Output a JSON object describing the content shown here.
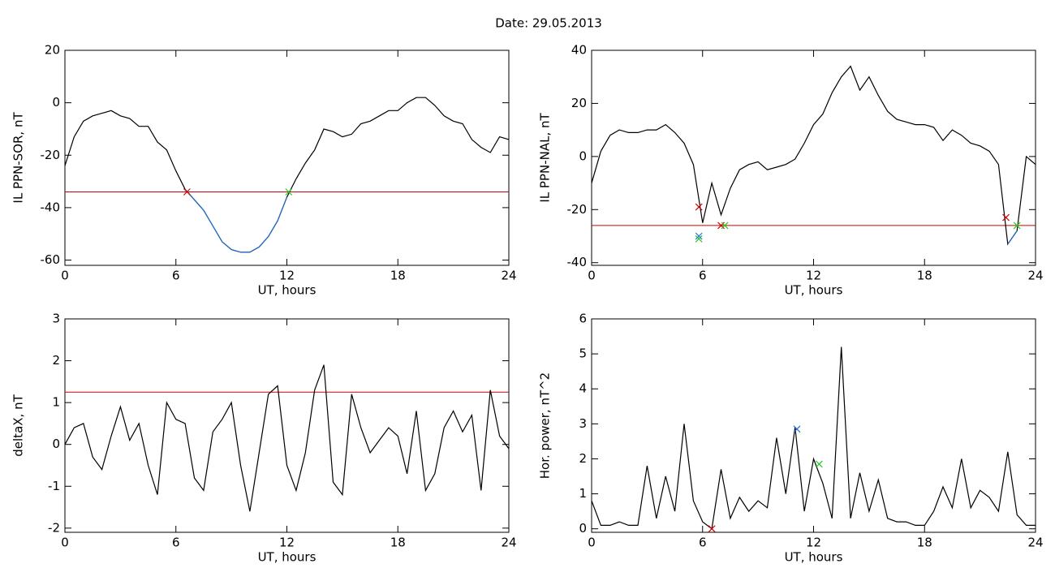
{
  "title": "Date:  29.05.2013",
  "chart_data": [
    {
      "type": "line",
      "ylabel": "IL PPN-SOR, nT",
      "xlabel": "UT, hours",
      "xlim": [
        0,
        24
      ],
      "xticks": [
        0,
        6,
        12,
        18,
        24
      ],
      "ylim": [
        -62,
        20
      ],
      "yticks": [
        -60,
        -40,
        -20,
        0,
        20
      ],
      "x": [
        0,
        0.5,
        1,
        1.5,
        2,
        2.5,
        3,
        3.5,
        4,
        4.5,
        5,
        5.5,
        6,
        6.5,
        7,
        7.5,
        8,
        8.5,
        9,
        9.5,
        10,
        10.5,
        11,
        11.5,
        12,
        12.5,
        13,
        13.5,
        14,
        14.5,
        15,
        15.5,
        16,
        16.5,
        17,
        17.5,
        18,
        18.5,
        19,
        19.5,
        20,
        20.5,
        21,
        21.5,
        22,
        22.5,
        23,
        23.5,
        24
      ],
      "series": [
        {
          "color": "#000000",
          "values": [
            -24,
            -13,
            -7,
            -5,
            -4,
            -3,
            -5,
            -6,
            -9,
            -9,
            -15,
            -18,
            -26,
            -33,
            -37,
            -41,
            -47,
            -53,
            -56,
            -57,
            -57,
            -55,
            -51,
            -45,
            -36,
            -29,
            -23,
            -18,
            -10,
            -11,
            -13,
            -12,
            -8,
            -7,
            -5,
            -3,
            -3,
            0,
            2,
            2,
            -1,
            -5,
            -7,
            -8,
            -14,
            -17,
            -19,
            -13,
            -14
          ]
        },
        {
          "color": "#1f6fd0",
          "values": [
            null,
            null,
            null,
            null,
            null,
            null,
            null,
            null,
            null,
            null,
            null,
            null,
            null,
            -33,
            -37,
            -41,
            -47,
            -53,
            -56,
            -57,
            -57,
            -55,
            -51,
            -45,
            -36,
            null,
            null,
            null,
            null,
            null,
            null,
            null,
            null,
            null,
            null,
            null,
            null,
            null,
            null,
            null,
            null,
            null,
            null,
            null,
            null,
            null,
            null,
            null,
            null
          ]
        }
      ],
      "threshold": -34,
      "threshold_color": "#cc0000",
      "markers": [
        {
          "x": 6.6,
          "y": -34,
          "color": "#cc0000"
        },
        {
          "x": 12.1,
          "y": -34,
          "color": "#22cc22"
        }
      ]
    },
    {
      "type": "line",
      "ylabel": "IL PPN-NAL, nT",
      "xlabel": "UT, hours",
      "xlim": [
        0,
        24
      ],
      "xticks": [
        0,
        6,
        12,
        18,
        24
      ],
      "ylim": [
        -41,
        40
      ],
      "yticks": [
        -40,
        -20,
        0,
        20,
        40
      ],
      "x": [
        0,
        0.5,
        1,
        1.5,
        2,
        2.5,
        3,
        3.5,
        4,
        4.5,
        5,
        5.5,
        6,
        6.5,
        7,
        7.5,
        8,
        8.5,
        9,
        9.5,
        10,
        10.5,
        11,
        11.5,
        12,
        12.5,
        13,
        13.5,
        14,
        14.5,
        15,
        15.5,
        16,
        16.5,
        17,
        17.5,
        18,
        18.5,
        19,
        19.5,
        20,
        20.5,
        21,
        21.5,
        22,
        22.5,
        23,
        23.5,
        24
      ],
      "series": [
        {
          "color": "#000000",
          "values": [
            -10,
            2,
            8,
            10,
            9,
            9,
            10,
            10,
            12,
            9,
            5,
            -3,
            -25,
            -10,
            -22,
            -12,
            -5,
            -3,
            -2,
            -5,
            -4,
            -3,
            -1,
            5,
            12,
            16,
            24,
            30,
            34,
            25,
            30,
            23,
            17,
            14,
            13,
            12,
            12,
            11,
            6,
            10,
            8,
            5,
            4,
            2,
            -3,
            -33,
            -28,
            0,
            -3
          ]
        },
        {
          "color": "#1f6fd0",
          "values": [
            null,
            null,
            null,
            null,
            null,
            null,
            null,
            null,
            null,
            null,
            null,
            null,
            null,
            null,
            null,
            null,
            null,
            null,
            null,
            null,
            null,
            null,
            null,
            null,
            null,
            null,
            null,
            null,
            null,
            null,
            null,
            null,
            null,
            null,
            null,
            null,
            null,
            null,
            null,
            null,
            null,
            null,
            null,
            null,
            null,
            -33,
            -28,
            null,
            null
          ]
        }
      ],
      "threshold": -26,
      "threshold_color": "#cc0000",
      "markers": [
        {
          "x": 5.8,
          "y": -19,
          "color": "#cc0000"
        },
        {
          "x": 5.8,
          "y": -31,
          "color": "#22cc22"
        },
        {
          "x": 5.8,
          "y": -30,
          "color": "#1f6fd0"
        },
        {
          "x": 7.0,
          "y": -26,
          "color": "#cc0000"
        },
        {
          "x": 7.2,
          "y": -26,
          "color": "#22cc22"
        },
        {
          "x": 22.4,
          "y": -23,
          "color": "#cc0000"
        },
        {
          "x": 23.0,
          "y": -26,
          "color": "#22cc22"
        }
      ]
    },
    {
      "type": "line",
      "ylabel": "deltaX, nT",
      "xlabel": "UT, hours",
      "xlim": [
        0,
        24
      ],
      "xticks": [
        0,
        6,
        12,
        18,
        24
      ],
      "ylim": [
        -2.1,
        3
      ],
      "yticks": [
        -2,
        -1,
        0,
        1,
        2,
        3
      ],
      "x": [
        0,
        0.5,
        1,
        1.5,
        2,
        2.5,
        3,
        3.5,
        4,
        4.5,
        5,
        5.5,
        6,
        6.5,
        7,
        7.5,
        8,
        8.5,
        9,
        9.5,
        10,
        10.5,
        11,
        11.5,
        12,
        12.5,
        13,
        13.5,
        14,
        14.5,
        15,
        15.5,
        16,
        16.5,
        17,
        17.5,
        18,
        18.5,
        19,
        19.5,
        20,
        20.5,
        21,
        21.5,
        22,
        22.5,
        23,
        23.5,
        24
      ],
      "series": [
        {
          "color": "#000000",
          "values": [
            0,
            0.4,
            0.5,
            -0.3,
            -0.6,
            0.2,
            0.9,
            0.1,
            0.5,
            -0.5,
            -1.2,
            1.0,
            0.6,
            0.5,
            -0.8,
            -1.1,
            0.3,
            0.6,
            1.0,
            -0.5,
            -1.6,
            -0.2,
            1.2,
            1.4,
            -0.5,
            -1.1,
            -0.2,
            1.3,
            1.9,
            -0.9,
            -1.2,
            1.2,
            0.4,
            -0.2,
            0.1,
            0.4,
            0.2,
            -0.7,
            0.8,
            -1.1,
            -0.7,
            0.4,
            0.8,
            0.3,
            0.7,
            -1.1,
            1.3,
            0.2,
            -0.1
          ]
        }
      ],
      "threshold": 1.25,
      "threshold_color": "#cc0000",
      "markers": []
    },
    {
      "type": "line",
      "ylabel": "Hor. power, nT^2",
      "xlabel": "UT, hours",
      "xlim": [
        0,
        24
      ],
      "xticks": [
        0,
        6,
        12,
        18,
        24
      ],
      "ylim": [
        -0.1,
        6
      ],
      "yticks": [
        0,
        1,
        2,
        3,
        4,
        5,
        6
      ],
      "x": [
        0,
        0.5,
        1,
        1.5,
        2,
        2.5,
        3,
        3.5,
        4,
        4.5,
        5,
        5.5,
        6,
        6.5,
        7,
        7.5,
        8,
        8.5,
        9,
        9.5,
        10,
        10.5,
        11,
        11.5,
        12,
        12.5,
        13,
        13.5,
        14,
        14.5,
        15,
        15.5,
        16,
        16.5,
        17,
        17.5,
        18,
        18.5,
        19,
        19.5,
        20,
        20.5,
        21,
        21.5,
        22,
        22.5,
        23,
        23.5,
        24
      ],
      "series": [
        {
          "color": "#000000",
          "values": [
            0.8,
            0.1,
            0.1,
            0.2,
            0.1,
            0.1,
            1.8,
            0.3,
            1.5,
            0.5,
            3.0,
            0.8,
            0.2,
            0.0,
            1.7,
            0.3,
            0.9,
            0.5,
            0.8,
            0.6,
            2.6,
            1.0,
            2.9,
            0.5,
            2.0,
            1.3,
            0.3,
            5.2,
            0.3,
            1.6,
            0.5,
            1.4,
            0.3,
            0.2,
            0.2,
            0.1,
            0.1,
            0.5,
            1.2,
            0.6,
            2.0,
            0.6,
            1.1,
            0.9,
            0.5,
            2.2,
            0.4,
            0.1,
            0.1
          ]
        }
      ],
      "markers": [
        {
          "x": 11.1,
          "y": 2.85,
          "color": "#1f6fd0"
        },
        {
          "x": 12.3,
          "y": 1.85,
          "color": "#22cc22"
        },
        {
          "x": 6.5,
          "y": 0.0,
          "color": "#cc0000"
        }
      ]
    }
  ]
}
